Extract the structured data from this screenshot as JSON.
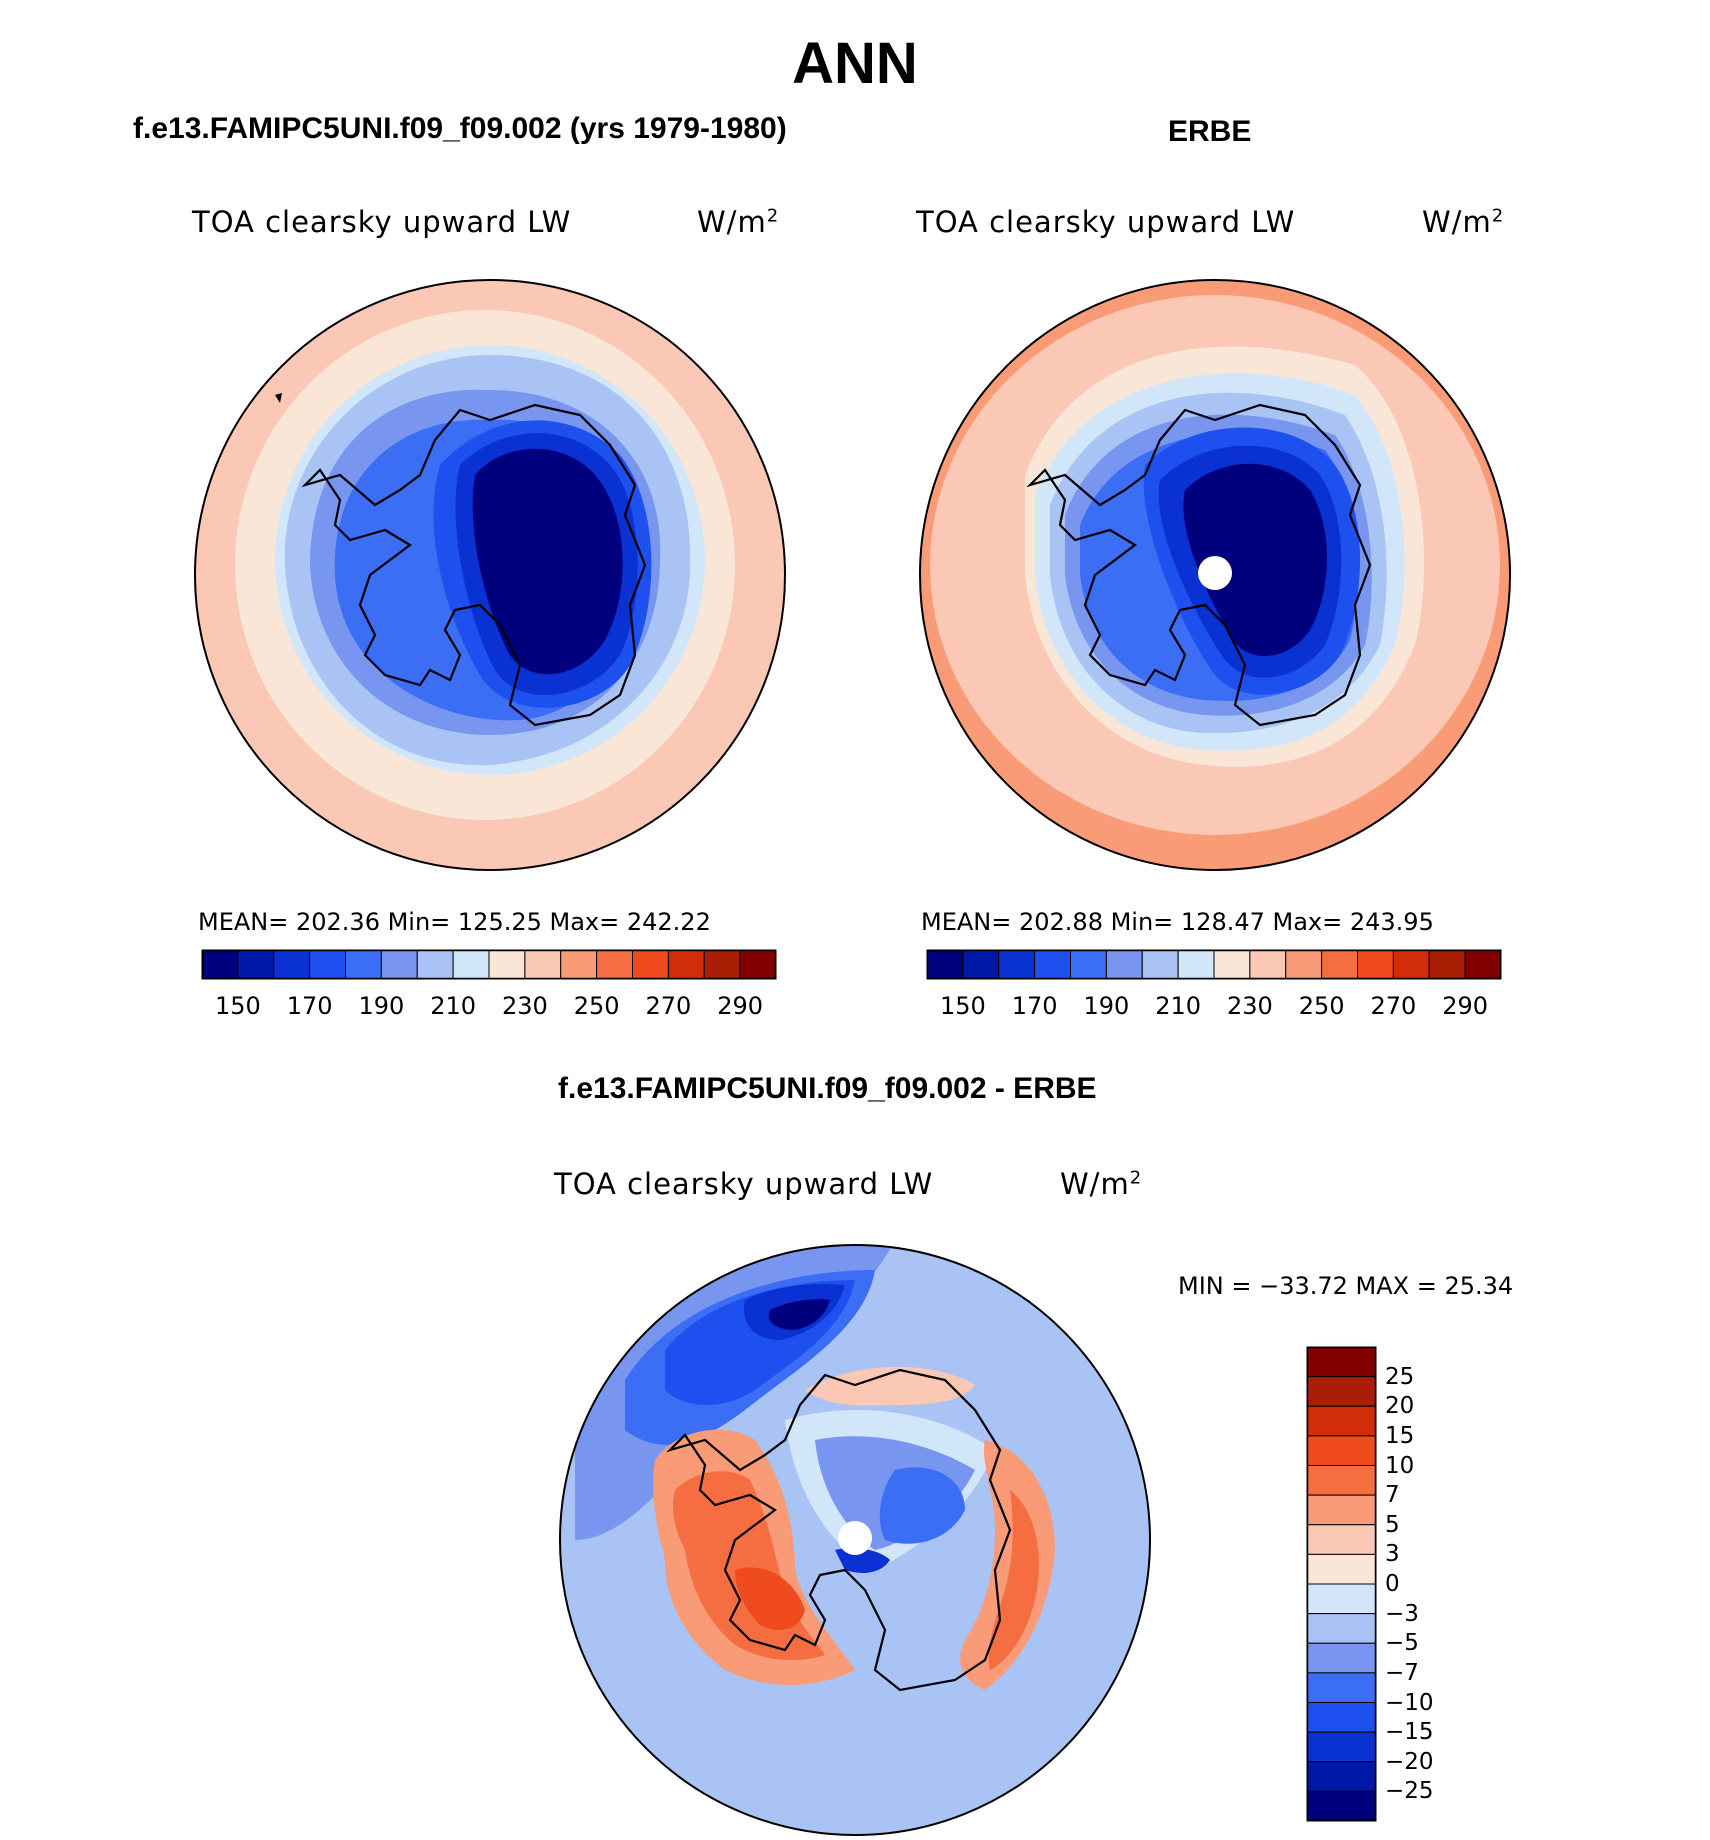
{
  "main_title": "ANN",
  "panels": [
    {
      "case_title": "f.e13.FAMIPC5UNI.f09_f09.002 (yrs 1979-1980)",
      "variable": "TOA clearsky upward LW",
      "units_base": "W/m",
      "units_exp": "2",
      "stats": "MEAN= 202.36   Min= 125.25   Max= 242.22",
      "colorbar_ticks": [
        "150",
        "170",
        "190",
        "210",
        "230",
        "250",
        "270",
        "290"
      ]
    },
    {
      "case_title": "ERBE",
      "variable": "TOA clearsky upward LW",
      "units_base": "W/m",
      "units_exp": "2",
      "stats": "MEAN= 202.88   Min= 128.47   Max= 243.95",
      "colorbar_ticks": [
        "150",
        "170",
        "190",
        "210",
        "230",
        "250",
        "270",
        "290"
      ]
    },
    {
      "case_title": "f.e13.FAMIPC5UNI.f09_f09.002 - ERBE",
      "variable": "TOA clearsky upward LW",
      "units_base": "W/m",
      "units_exp": "2",
      "stats": "MIN = −33.72 MAX =   25.34",
      "colorbar_ticks": [
        "25",
        "20",
        "15",
        "10",
        "7",
        "5",
        "3",
        "0",
        "−3",
        "−5",
        "−7",
        "−10",
        "−15",
        "−20",
        "−25"
      ]
    }
  ],
  "colors": {
    "abs_scale": [
      "#00007f",
      "#0018a8",
      "#0a32d2",
      "#1e50f0",
      "#3c6ef5",
      "#7896f0",
      "#aac3f5",
      "#d2e6fa",
      "#fae6d7",
      "#fac8b4",
      "#fa9b78",
      "#f56e41",
      "#f04b1e",
      "#d22d0a",
      "#aa1e05",
      "#820000"
    ],
    "diff_scale": [
      "#820000",
      "#aa1e05",
      "#d22d0a",
      "#f04b1e",
      "#f56e41",
      "#fa9b78",
      "#fac8b4",
      "#fae6d7",
      "#d2e6fa",
      "#aac3f5",
      "#7896f0",
      "#3c6ef5",
      "#1e50f0",
      "#0a32d2",
      "#0018a8",
      "#00007f"
    ]
  },
  "chart_data": [
    {
      "type": "heatmap",
      "title": "f.e13.FAMIPC5UNI.f09_f09.002 (yrs 1979-1980)",
      "variable": "TOA clearsky upward LW",
      "units": "W/m2",
      "mean": 202.36,
      "min": 125.25,
      "max": 242.22,
      "contour_levels": [
        140,
        150,
        160,
        170,
        180,
        190,
        200,
        210,
        220,
        230,
        240,
        250,
        260,
        270,
        280,
        290,
        300
      ],
      "projection": "south polar stereographic"
    },
    {
      "type": "heatmap",
      "title": "ERBE",
      "variable": "TOA clearsky upward LW",
      "units": "W/m2",
      "mean": 202.88,
      "min": 128.47,
      "max": 243.95,
      "contour_levels": [
        140,
        150,
        160,
        170,
        180,
        190,
        200,
        210,
        220,
        230,
        240,
        250,
        260,
        270,
        280,
        290,
        300
      ],
      "projection": "south polar stereographic"
    },
    {
      "type": "heatmap",
      "title": "f.e13.FAMIPC5UNI.f09_f09.002 - ERBE",
      "variable": "TOA clearsky upward LW",
      "units": "W/m2",
      "min": -33.72,
      "max": 25.34,
      "contour_levels": [
        25,
        20,
        15,
        10,
        7,
        5,
        3,
        0,
        -3,
        -5,
        -7,
        -10,
        -15,
        -20,
        -25
      ],
      "projection": "south polar stereographic"
    }
  ]
}
